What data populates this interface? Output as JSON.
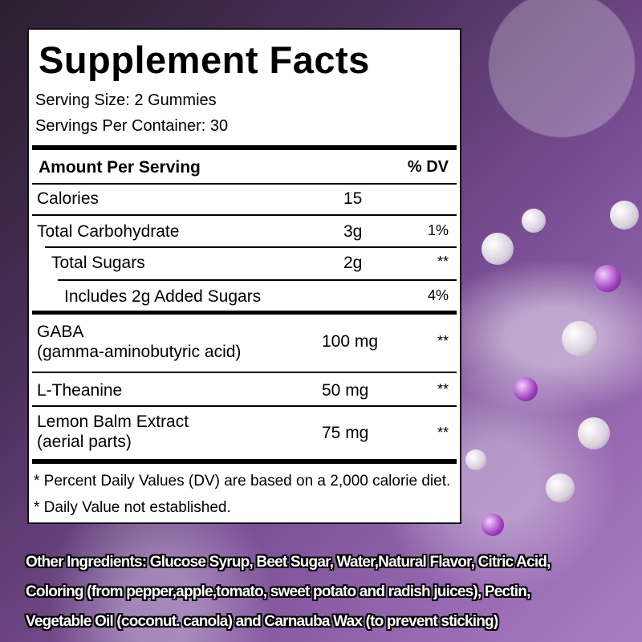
{
  "label": {
    "title": "Supplement Facts",
    "serving_size": "Serving Size: 2 Gummies",
    "servings_per_container": "Servings Per Container: 30",
    "header": {
      "amount": "Amount Per Serving",
      "dv": "% DV"
    },
    "rows": [
      {
        "name": "Calories",
        "amount": "15",
        "dv": ""
      },
      {
        "name": "Total Carbohydrate",
        "amount": "3g",
        "dv": "1%"
      },
      {
        "name": "Total Sugars",
        "amount": "2g",
        "dv": "**"
      },
      {
        "name": "Includes 2g Added Sugars",
        "amount": "",
        "dv": "4%"
      },
      {
        "name": "GABA",
        "name2": "(gamma-aminobutyric acid)",
        "amount": "100 mg",
        "dv": "**"
      },
      {
        "name": "L-Theanine",
        "amount": "50 mg",
        "dv": "**"
      },
      {
        "name": "Lemon Balm Extract",
        "name2": "(aerial parts)",
        "amount": "75 mg",
        "dv": "**"
      }
    ],
    "footnotes": [
      "* Percent Daily Values (DV) are based on a 2,000 calorie diet.",
      "* Daily Value not established."
    ]
  },
  "ingredients": {
    "line1": "Other Ingredients:  Glucose Syrup, Beet Sugar, Water,Natural Flavor, Citric Acid,",
    "line2": "Coloring (from pepper,apple,tomato, sweet potato and radish juices), Pectin,",
    "line3": "Vegetable Oil (coconut. canola) and Carnauba Wax (to prevent sticking)"
  },
  "colors": {
    "background": "#7a4f95",
    "label_bg": "#ffffff",
    "text": "#000000"
  }
}
